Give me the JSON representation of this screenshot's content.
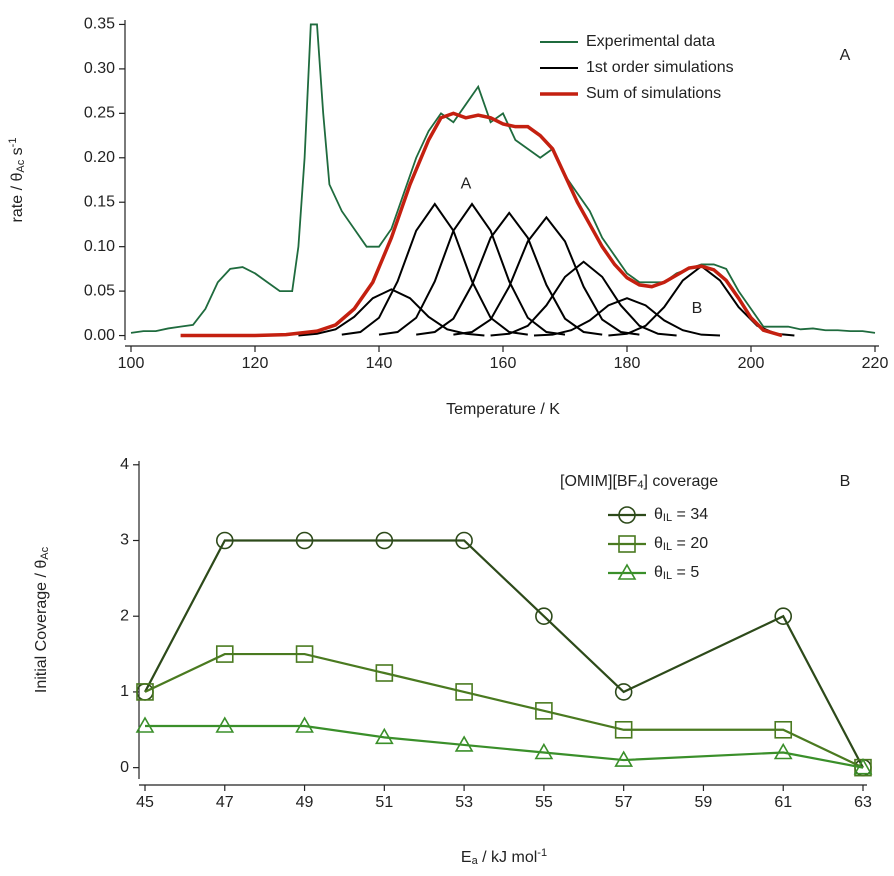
{
  "chart_data": [
    {
      "type": "line",
      "panel_label": "A",
      "xlabel": "Temperature / K",
      "ylabel": [
        "rate / θ",
        "Ac",
        " s",
        "-1"
      ],
      "annotations": [
        "A",
        "B"
      ],
      "xlim": [
        100,
        220
      ],
      "ylim": [
        -0.005,
        0.355
      ],
      "xticks": [
        100,
        120,
        140,
        160,
        180,
        200,
        220
      ],
      "yticks": [
        {
          "value": 0,
          "label": "0.00"
        },
        {
          "value": 0.05,
          "label": "0.05"
        },
        {
          "value": 0.1,
          "label": "0.10"
        },
        {
          "value": 0.15,
          "label": "0.15"
        },
        {
          "value": 0.2,
          "label": "0.20"
        },
        {
          "value": 0.25,
          "label": "0.25"
        },
        {
          "value": 0.3,
          "label": "0.30"
        },
        {
          "value": 0.35,
          "label": "0.35"
        }
      ],
      "series": [
        {
          "name": "Experimental data",
          "color": "#1f6b3e",
          "x": [
            100,
            102,
            104,
            106,
            108,
            110,
            112,
            114,
            116,
            118,
            120,
            122,
            124,
            126,
            127,
            128,
            129,
            130,
            131,
            132,
            134,
            136,
            138,
            140,
            142,
            144,
            146,
            148,
            150,
            152,
            154,
            156,
            158,
            160,
            162,
            164,
            166,
            168,
            170,
            172,
            174,
            176,
            178,
            180,
            182,
            184,
            186,
            188,
            190,
            192,
            194,
            196,
            198,
            200,
            202,
            204,
            206,
            208,
            210,
            212,
            214,
            216,
            218,
            220
          ],
          "values": [
            0.003,
            0.005,
            0.005,
            0.008,
            0.01,
            0.012,
            0.03,
            0.06,
            0.075,
            0.077,
            0.07,
            0.06,
            0.05,
            0.05,
            0.1,
            0.2,
            0.35,
            0.35,
            0.25,
            0.17,
            0.14,
            0.12,
            0.1,
            0.1,
            0.12,
            0.16,
            0.2,
            0.23,
            0.25,
            0.24,
            0.26,
            0.28,
            0.24,
            0.25,
            0.22,
            0.21,
            0.2,
            0.21,
            0.18,
            0.16,
            0.14,
            0.11,
            0.09,
            0.07,
            0.06,
            0.06,
            0.06,
            0.07,
            0.075,
            0.08,
            0.08,
            0.075,
            0.05,
            0.03,
            0.01,
            0.01,
            0.01,
            0.007,
            0.008,
            0.006,
            0.006,
            0.005,
            0.005,
            0.003
          ]
        },
        {
          "name": "1st order simulations",
          "color": "#000000",
          "x": [
            127,
            130,
            133,
            136,
            139,
            142,
            145,
            148,
            151,
            154,
            157
          ],
          "values": [
            0,
            0.002,
            0.007,
            0.021,
            0.042,
            0.052,
            0.042,
            0.021,
            0.007,
            0.002,
            0
          ]
        },
        {
          "color": "#000000",
          "x": [
            134,
            137,
            140,
            143,
            146,
            149,
            152,
            155,
            158,
            161,
            164
          ],
          "values": [
            0.001,
            0.004,
            0.02,
            0.061,
            0.118,
            0.148,
            0.118,
            0.061,
            0.02,
            0.004,
            0.001
          ]
        },
        {
          "color": "#000000",
          "x": [
            140,
            143,
            146,
            149,
            152,
            155,
            158,
            161,
            164,
            167,
            170
          ],
          "values": [
            0.001,
            0.004,
            0.02,
            0.061,
            0.118,
            0.148,
            0.118,
            0.061,
            0.02,
            0.004,
            0.001
          ]
        },
        {
          "color": "#000000",
          "x": [
            146,
            149,
            152,
            155,
            158,
            161,
            164,
            167,
            170,
            173,
            176
          ],
          "values": [
            0.001,
            0.004,
            0.019,
            0.057,
            0.11,
            0.138,
            0.11,
            0.057,
            0.019,
            0.004,
            0.001
          ]
        },
        {
          "color": "#000000",
          "x": [
            152,
            155,
            158,
            161,
            164,
            167,
            170,
            173,
            176,
            179,
            182
          ],
          "values": [
            0.001,
            0.004,
            0.018,
            0.055,
            0.106,
            0.133,
            0.106,
            0.055,
            0.018,
            0.004,
            0.001
          ]
        },
        {
          "color": "#000000",
          "x": [
            158,
            161,
            164,
            167,
            170,
            173,
            176,
            179,
            182,
            185,
            188
          ],
          "values": [
            0,
            0.002,
            0.011,
            0.034,
            0.066,
            0.083,
            0.066,
            0.034,
            0.011,
            0.002,
            0
          ]
        },
        {
          "color": "#000000",
          "x": [
            165,
            168,
            171,
            174,
            177,
            180,
            183,
            186,
            189,
            192,
            195
          ],
          "values": [
            0,
            0.001,
            0.006,
            0.017,
            0.034,
            0.042,
            0.034,
            0.017,
            0.006,
            0.001,
            0
          ]
        },
        {
          "color": "#000000",
          "x": [
            177,
            180,
            183,
            186,
            189,
            192,
            195,
            198,
            201,
            204,
            207
          ],
          "values": [
            0,
            0.002,
            0.011,
            0.032,
            0.062,
            0.078,
            0.062,
            0.032,
            0.011,
            0.002,
            0
          ]
        },
        {
          "name": "Sum of simulations",
          "color": "#c42010",
          "x": [
            108,
            120,
            125,
            130,
            133,
            136,
            139,
            142,
            145,
            148,
            150,
            152,
            154,
            156,
            158,
            160,
            162,
            164,
            166,
            168,
            170,
            172,
            174,
            176,
            178,
            180,
            182,
            184,
            186,
            188,
            190,
            192,
            194,
            196,
            198,
            200,
            202,
            205
          ],
          "values": [
            0,
            0,
            0.001,
            0.005,
            0.012,
            0.03,
            0.06,
            0.11,
            0.17,
            0.22,
            0.245,
            0.25,
            0.245,
            0.248,
            0.245,
            0.238,
            0.235,
            0.235,
            0.225,
            0.21,
            0.18,
            0.15,
            0.125,
            0.1,
            0.08,
            0.065,
            0.057,
            0.055,
            0.06,
            0.068,
            0.076,
            0.078,
            0.074,
            0.062,
            0.042,
            0.02,
            0.006,
            0
          ]
        }
      ]
    },
    {
      "type": "line",
      "panel_label": "B",
      "xlabel": [
        "E",
        "a",
        " / kJ mol",
        "-1"
      ],
      "ylabel": [
        "Initial Coverage / θ",
        "Ac"
      ],
      "legend_title": [
        "[OMIM][BF",
        "4",
        "] coverage"
      ],
      "xlim": [
        45,
        63
      ],
      "ylim": [
        -0.15,
        4.05
      ],
      "xticks": [
        45,
        47,
        49,
        51,
        53,
        55,
        57,
        59,
        61,
        63
      ],
      "yticks": [
        0,
        1,
        2,
        3,
        4
      ],
      "series": [
        {
          "name": [
            "θ",
            "IL",
            " = 34"
          ],
          "color": "#2d4a1a",
          "marker": "circle",
          "x": [
            45,
            47,
            49,
            51,
            53,
            55,
            57,
            61,
            63
          ],
          "values": [
            1,
            3,
            3,
            3,
            3,
            2,
            1,
            2,
            0
          ]
        },
        {
          "name": [
            "θ",
            "IL",
            " = 20"
          ],
          "color": "#4a7a20",
          "marker": "square",
          "x": [
            45,
            47,
            49,
            51,
            53,
            55,
            57,
            61,
            63
          ],
          "values": [
            1,
            1.5,
            1.5,
            1.25,
            1,
            0.75,
            0.5,
            0.5,
            0
          ]
        },
        {
          "name": [
            "θ",
            "IL",
            " = 5"
          ],
          "color": "#3a8f2a",
          "marker": "triangle",
          "x": [
            45,
            47,
            49,
            51,
            53,
            55,
            57,
            61,
            63
          ],
          "values": [
            0.55,
            0.55,
            0.55,
            0.4,
            0.3,
            0.2,
            0.1,
            0.2,
            0
          ]
        }
      ]
    }
  ]
}
